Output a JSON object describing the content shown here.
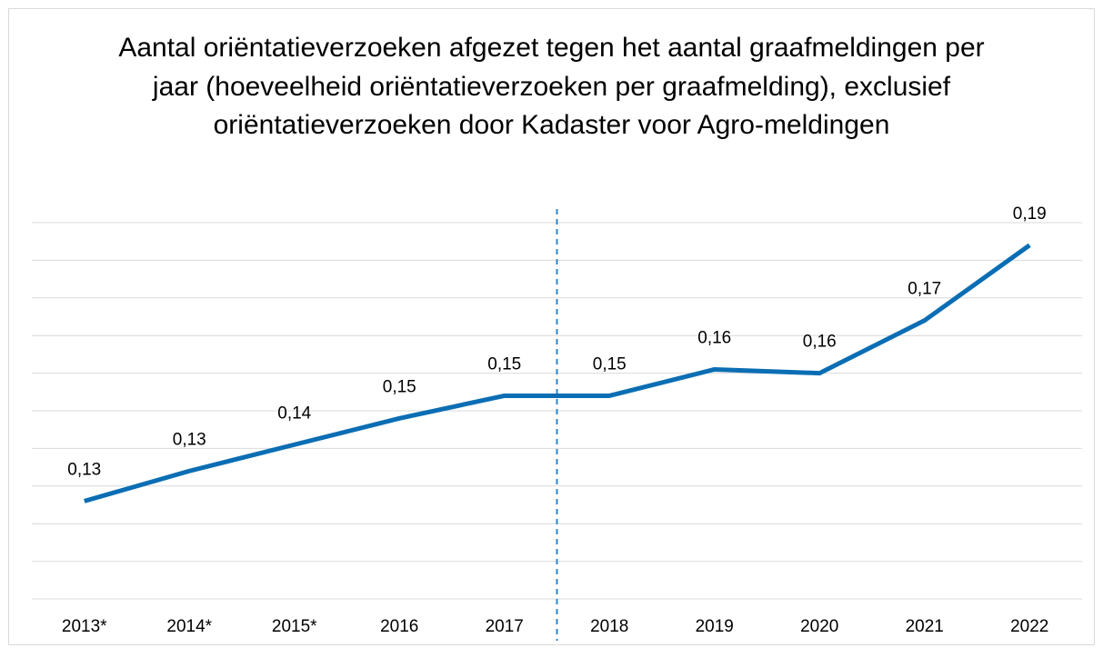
{
  "chart_data": {
    "type": "line",
    "title": "Aantal oriëntatieverzoeken afgezet tegen het aantal graafmeldingen per jaar (hoeveelheid oriëntatieverzoeken per graafmelding), exclusief oriëntatieverzoeken door Kadaster voor Agro-meldingen",
    "categories": [
      "2013*",
      "2014*",
      "2015*",
      "2016",
      "2017",
      "2018",
      "2019",
      "2020",
      "2021",
      "2022"
    ],
    "series": [
      {
        "name": null,
        "color": "#0b6eb4",
        "values": [
          0.126,
          0.134,
          0.141,
          0.148,
          0.154,
          0.154,
          0.161,
          0.16,
          0.174,
          0.194
        ],
        "value_labels": [
          "0,13",
          "0,13",
          "0,14",
          "0,15",
          "0,15",
          "0,15",
          "0,16",
          "0,16",
          "0,17",
          "0,19"
        ]
      }
    ],
    "ylim": [
      0.1,
      0.2
    ],
    "yticks": [
      0.1,
      0.11,
      0.12,
      0.13,
      0.14,
      0.15,
      0.16,
      0.17,
      0.18,
      0.19,
      0.2
    ],
    "grid": true
  }
}
